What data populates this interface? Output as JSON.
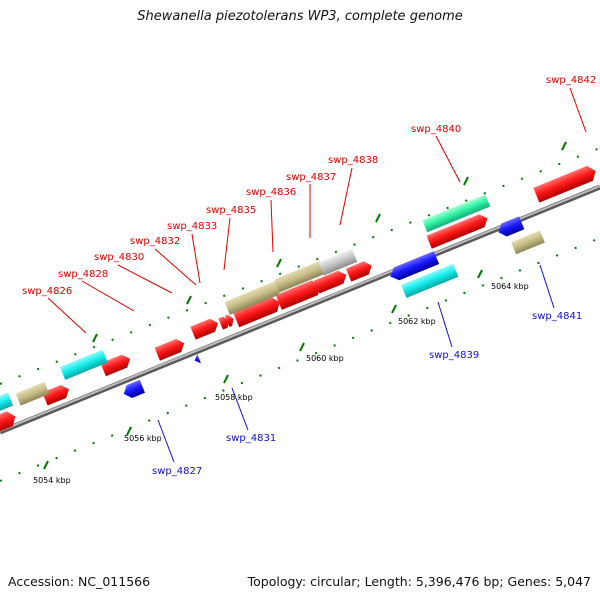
{
  "title": "Shewanella piezotolerans WP3, complete genome",
  "footer": {
    "accession": "Accession: NC_011566",
    "summary": "Topology: circular; Length: 5,396,476 bp; Genes: 5,047"
  },
  "colors": {
    "forward_cds": "#ff1a1a",
    "reverse_cds": "#1a1aff",
    "rna": "#33f5a8",
    "cyan_feature": "#17eeee",
    "olive_feature": "#c8bf8a",
    "grey_feature": "#c8c8c8",
    "backbone": "#8a8a8a",
    "tick": "#007a00",
    "forward_label": "#dd0000",
    "reverse_label": "#1010cc"
  },
  "scale_labels": [
    {
      "text": "5054 kbp"
    },
    {
      "text": "5056 kbp"
    },
    {
      "text": "5058 kbp"
    },
    {
      "text": "5060 kbp"
    },
    {
      "text": "5062 kbp"
    },
    {
      "text": "5064 kbp"
    }
  ],
  "gene_labels": [
    {
      "text": "swp_4826",
      "strand": "forward"
    },
    {
      "text": "swp_4828",
      "strand": "forward"
    },
    {
      "text": "swp_4830",
      "strand": "forward"
    },
    {
      "text": "swp_4832",
      "strand": "forward"
    },
    {
      "text": "swp_4833",
      "strand": "forward"
    },
    {
      "text": "swp_4835",
      "strand": "forward"
    },
    {
      "text": "swp_4836",
      "strand": "forward"
    },
    {
      "text": "swp_4837",
      "strand": "forward"
    },
    {
      "text": "swp_4838",
      "strand": "forward"
    },
    {
      "text": "swp_4840",
      "strand": "forward"
    },
    {
      "text": "swp_4842",
      "strand": "forward"
    },
    {
      "text": "swp_4827",
      "strand": "reverse"
    },
    {
      "text": "swp_4831",
      "strand": "reverse"
    },
    {
      "text": "swp_4839",
      "strand": "reverse"
    },
    {
      "text": "swp_4841",
      "strand": "reverse"
    }
  ]
}
